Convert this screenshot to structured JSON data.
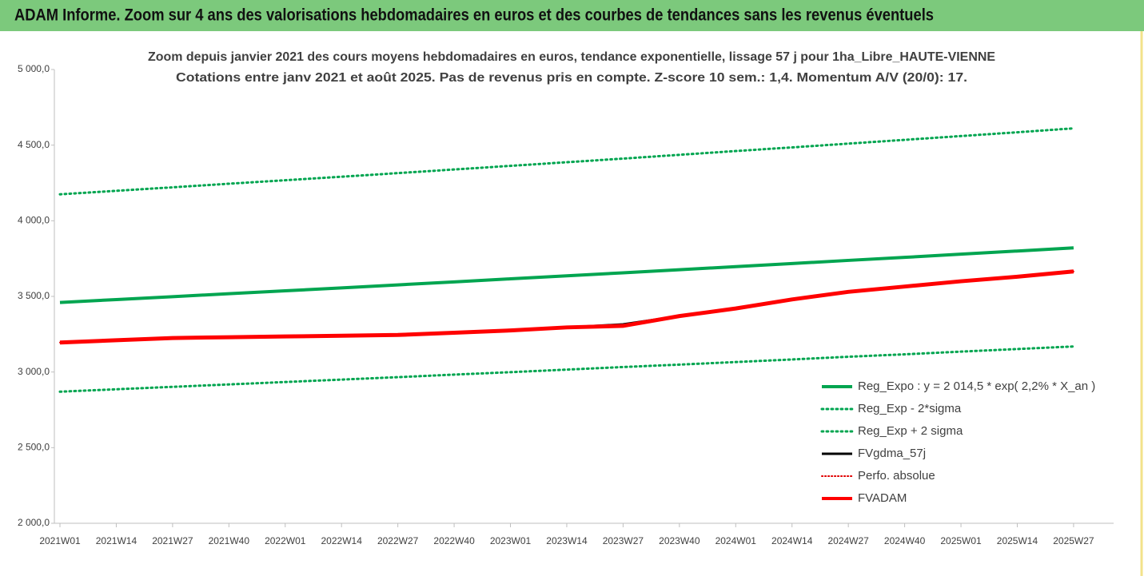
{
  "header": {
    "title": "ADAM Informe. Zoom sur 4 ans des valorisations hebdomadaires en euros et des courbes de tendances sans les revenus éventuels"
  },
  "chart_data": {
    "type": "line",
    "title": "Zoom depuis janvier 2021 des cours moyens hebdomadaires en euros, tendance exponentielle, lissage 57 j pour 1ha_Libre_HAUTE-VIENNE",
    "subtitle": "Cotations entre janv 2021 et août 2025. Pas de revenus pris en compte. Z-score 10 sem.: 1,4. Momentum A/V (20/0): 17.",
    "categories": [
      "2021W01",
      "2021W14",
      "2021W27",
      "2021W40",
      "2022W01",
      "2022W14",
      "2022W27",
      "2022W40",
      "2023W01",
      "2023W14",
      "2023W27",
      "2023W40",
      "2024W01",
      "2024W14",
      "2024W27",
      "2024W40",
      "2025W01",
      "2025W14",
      "2025W27"
    ],
    "ylim": [
      2000,
      5000
    ],
    "yticks": [
      {
        "value": 2000,
        "label": "2 000,0"
      },
      {
        "value": 2500,
        "label": "2 500,0"
      },
      {
        "value": 3000,
        "label": "3 000,0"
      },
      {
        "value": 3500,
        "label": "3 500,0"
      },
      {
        "value": 4000,
        "label": "4 000,0"
      },
      {
        "value": 4500,
        "label": "4 500,0"
      },
      {
        "value": 5000,
        "label": "5 000,0"
      }
    ],
    "grid": false,
    "legend": "bottom-right",
    "series": [
      {
        "name": "Reg_Expo : y = 2 014,5 * exp( 2,2% *  X_an )",
        "color": "#00a550",
        "style": "solid",
        "width": 4,
        "values": [
          3460,
          3479,
          3498,
          3518,
          3537,
          3556,
          3576,
          3596,
          3616,
          3636,
          3656,
          3676,
          3697,
          3717,
          3738,
          3758,
          3779,
          3800,
          3821
        ]
      },
      {
        "name": "Reg_Exp - 2*sigma",
        "color": "#00a550",
        "style": "dotted",
        "width": 3,
        "values": [
          2870,
          2886,
          2902,
          2918,
          2934,
          2950,
          2966,
          2983,
          2999,
          3016,
          3033,
          3049,
          3066,
          3083,
          3101,
          3117,
          3135,
          3152,
          3169
        ]
      },
      {
        "name": "Reg_Exp + 2 sigma",
        "color": "#00a550",
        "style": "dotted",
        "width": 3,
        "values": [
          4175,
          4198,
          4221,
          4245,
          4268,
          4291,
          4315,
          4339,
          4363,
          4387,
          4411,
          4436,
          4461,
          4485,
          4510,
          4535,
          4560,
          4585,
          4611
        ]
      },
      {
        "name": "FVgdma_57j",
        "color": "#000000",
        "style": "solid",
        "width": 3,
        "values": [
          3195,
          3210,
          3225,
          3230,
          3235,
          3240,
          3245,
          3260,
          3275,
          3295,
          3315,
          3370,
          3420,
          3480,
          3530,
          3565,
          3600,
          3630,
          3665
        ]
      },
      {
        "name": "Perfo. absolue",
        "color": "#e00000",
        "style": "dotted",
        "width": 2,
        "values": [
          3195,
          3210,
          3225,
          3230,
          3235,
          3240,
          3245,
          3260,
          3275,
          3295,
          3310,
          3370,
          3420,
          3480,
          3530,
          3565,
          3600,
          3630,
          3665
        ]
      },
      {
        "name": "FVADAM",
        "color": "#ff0000",
        "style": "solid",
        "width": 5,
        "values": [
          3195,
          3210,
          3225,
          3230,
          3235,
          3240,
          3245,
          3260,
          3275,
          3295,
          3305,
          3370,
          3420,
          3480,
          3530,
          3565,
          3600,
          3630,
          3665
        ]
      }
    ]
  }
}
